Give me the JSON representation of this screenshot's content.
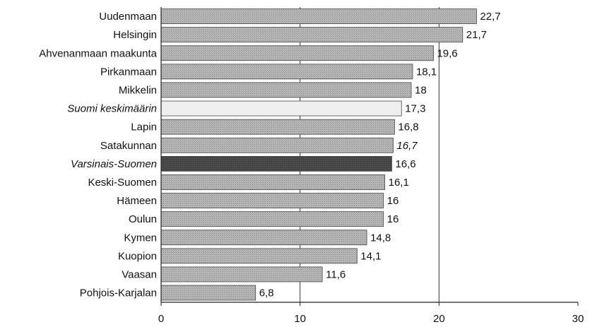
{
  "chart_data": {
    "type": "bar",
    "orientation": "horizontal",
    "categories": [
      "Uudenmaan",
      "Helsingin",
      "Ahvenanmaan maakunta",
      "Pirkanmaan",
      "Mikkelin",
      "Suomi keskimäärin",
      "Lapin",
      "Satakunnan",
      "Varsinais-Suomen",
      "Keski-Suomen",
      "Hämeen",
      "Oulun",
      "Kymen",
      "Kuopion",
      "Vaasan",
      "Pohjois-Karjalan"
    ],
    "values": [
      22.7,
      21.7,
      19.6,
      18.1,
      18,
      17.3,
      16.8,
      16.7,
      16.6,
      16.1,
      16,
      16,
      14.8,
      14.1,
      11.6,
      6.8
    ],
    "value_labels": [
      "22,7",
      "21,7",
      "19,6",
      "18,1",
      "18",
      "17,3",
      "16,8",
      "16,7",
      "16,6",
      "16,1",
      "16",
      "16",
      "14,8",
      "14,1",
      "11,6",
      "6,8"
    ],
    "italic_category_labels": [
      "Suomi keskimäärin",
      "Varsinais-Suomen"
    ],
    "italic_value_labels": [
      "16,7"
    ],
    "bar_styles": {
      "default": "hatched-gray",
      "Suomi keskimäärin": "light",
      "Varsinais-Suomen": "dark"
    },
    "colors": {
      "bar_fill": "#b4b4b4",
      "bar_hatch": "#8c8c8c",
      "highlight_light": "#efefef",
      "highlight_dark": "#4a4a4a",
      "axis": "#222222",
      "gridline": "#333333"
    },
    "xlim": [
      0,
      30
    ],
    "x_ticks": [
      0,
      10,
      20,
      30
    ],
    "x_tick_labels": [
      "0",
      "10",
      "20",
      "30"
    ],
    "gridlines_at": [
      10,
      20
    ],
    "title": "",
    "xlabel": "",
    "ylabel": ""
  }
}
